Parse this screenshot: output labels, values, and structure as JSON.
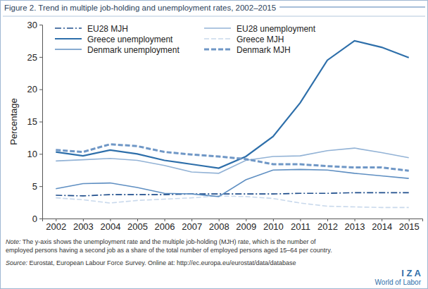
{
  "chart_data": {
    "type": "line",
    "title": "Figure 2. Trend in multiple job-holding and unemployment rates, 2002–2015",
    "y_label": "Percentage",
    "categories": [
      "2002",
      "2003",
      "2004",
      "2005",
      "2006",
      "2007",
      "2008",
      "2009",
      "2010",
      "2011",
      "2012",
      "2013",
      "2014",
      "2015"
    ],
    "ylim": [
      0,
      30
    ],
    "yticks": [
      0,
      5,
      10,
      15,
      20,
      25,
      30
    ],
    "grid": false,
    "legend": "top",
    "series": [
      {
        "name": "EU28 MJH",
        "color": "#1f4e8c",
        "line_style": "dashdot",
        "values": [
          3.6,
          3.5,
          3.7,
          3.7,
          3.7,
          3.8,
          3.8,
          3.8,
          3.8,
          3.9,
          3.9,
          4.0,
          4.0,
          4.0
        ]
      },
      {
        "name": "EU28 unemployment",
        "color": "#93b3d6",
        "line_style": "solid",
        "values": [
          8.9,
          9.1,
          9.3,
          9.0,
          8.2,
          7.2,
          7.0,
          9.0,
          9.6,
          9.7,
          10.5,
          10.9,
          10.2,
          9.4
        ]
      },
      {
        "name": "Greece unemployment",
        "color": "#2e6faa",
        "line_style": "solid",
        "values": [
          10.3,
          9.7,
          10.6,
          10.0,
          9.0,
          8.4,
          7.8,
          9.6,
          12.7,
          17.9,
          24.5,
          27.5,
          26.5,
          24.9
        ]
      },
      {
        "name": "Greece MJH",
        "color": "#c9d9ec",
        "line_style": "dashed",
        "values": [
          3.2,
          2.9,
          2.4,
          2.8,
          3.0,
          3.2,
          3.5,
          3.4,
          3.1,
          2.4,
          1.9,
          1.8,
          1.7,
          1.7
        ]
      },
      {
        "name": "Denmark unemployment",
        "color": "#5f8fc2",
        "line_style": "solid",
        "values": [
          4.6,
          5.4,
          5.5,
          4.8,
          3.9,
          3.8,
          3.4,
          6.0,
          7.5,
          7.6,
          7.5,
          7.0,
          6.6,
          6.2
        ]
      },
      {
        "name": "Denmark MJH",
        "color": "#6f97c6",
        "line_style": "dashed",
        "values": [
          10.6,
          10.3,
          11.5,
          11.2,
          10.3,
          9.9,
          9.6,
          9.2,
          8.4,
          8.4,
          8.1,
          7.9,
          7.9,
          7.4
        ]
      }
    ],
    "note_label": "Note:",
    "note": [
      "The y-axis shows the unemployment rate and the multiple job-holding (MJH) rate, which is the number of",
      "employed persons having a second job as a share of the total number of employed persons aged 15–64 per country."
    ],
    "source_label": "Source:",
    "source": "Eurostat, European Labour Force Survey. Online at: http://ec.europa.eu/eurostat/data/database",
    "logo": [
      "I Z A",
      "World of Labor"
    ]
  }
}
